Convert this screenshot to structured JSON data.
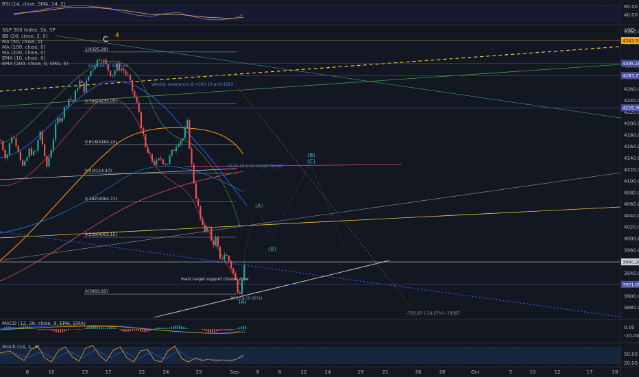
{
  "legend": {
    "symbol": "S&P 500 Index, 1h, SP",
    "rsi": "RSI (14, close, SMA, 14, 2)",
    "studies": [
      "BB (20, close, 2, 0)",
      "MA (50, close, 0)",
      "MA (100, close, 0)",
      "MA (200, close, 0)",
      "EMA (10, close, 0)",
      "EMA (200, close, 0, SMA, 5)"
    ],
    "macd": "MACD (12, 26, close, 9, EMA, EMA)",
    "stoch": "Stoch (14, 1, 3)"
  },
  "waves": {
    "c": "C",
    "four": "4",
    "a": "(A)",
    "b_green": "(B)",
    "b_target": "(B)",
    "c_target": "(C)",
    "a_bottom": "(A)"
  },
  "fib_levels": [
    {
      "label": "1(4325.28)",
      "price": 4325
    },
    {
      "label": "0.786(4235.05)",
      "price": 4235
    },
    {
      "label": "0.618(4164.22)",
      "price": 4164
    },
    {
      "label": "0.5(4114.47)",
      "price": 4114
    },
    {
      "label": "0.382(4064.71)",
      "price": 4065
    },
    {
      "label": "0.236(4003.15)",
      "price": 4003
    },
    {
      "label": "0(3903.65)",
      "price": 3904
    }
  ],
  "annotations": {
    "resistance": "Weekly resistance @ 4300.19 and 4283",
    "weekly_top": "4343.86 @ 4300.19",
    "target_zone": "main target support cluster zone",
    "next_target": "4135.35 next target target",
    "bottom_note": "3905.4 (0.00%)",
    "measure": "-703.87 (-16.27%) -70397"
  },
  "price_tags": [
    {
      "text": "4343.74",
      "price": 4345,
      "color": "#f5a623",
      "fg": "#131722"
    },
    {
      "text": "4305.19",
      "price": 4305,
      "color": "#4a4f9e",
      "fg": "#ffffff"
    },
    {
      "text": "4283.73",
      "price": 4284,
      "color": "#4a4f9e",
      "fg": "#ffffff"
    },
    {
      "text": "4228.36",
      "price": 4228,
      "color": "#4a4f9e",
      "fg": "#ffffff"
    },
    {
      "text": "3960.28",
      "price": 3960,
      "color": "#d1d4dc",
      "fg": "#131722"
    },
    {
      "text": "3921.05",
      "price": 3921,
      "color": "#4a4f9e",
      "fg": "#ffffff"
    }
  ],
  "colors": {
    "bg": "#131722",
    "up": "#26a69a",
    "down": "#ef5350",
    "fib": "#9598a1",
    "resist": "#6a3fbf"
  },
  "chart_data": {
    "type": "candlestick",
    "symbol": "S&P 500 Index",
    "interval": "1h",
    "x_ticks": [
      "8",
      "10",
      "15",
      "17",
      "22",
      "24",
      "29",
      "Sep",
      "6",
      "8",
      "12",
      "14",
      "19",
      "21",
      "26",
      "28",
      "Oct",
      "5",
      "10",
      "12",
      "17",
      "19"
    ],
    "y_ticks": [
      "4360.00",
      "4340.00",
      "4300.00",
      "4280.00",
      "4260.00",
      "4240.00",
      "4220.00",
      "4200.00",
      "4180.00",
      "4160.00",
      "4140.00",
      "4120.00",
      "4100.00",
      "4080.00",
      "4060.00",
      "4040.00",
      "4020.00",
      "4000.00",
      "3980.00",
      "3960.00",
      "3940.00",
      "3920.00",
      "3900.00",
      "3880.00"
    ],
    "unit": "USD",
    "ylim": [
      3860,
      4370
    ],
    "rsi_ticks": [
      "60.00",
      "40.00"
    ],
    "macd_ticks": [
      "0.00",
      "-20.00"
    ],
    "stoch_ticks": [
      "50.00",
      "20.00"
    ],
    "price_path": [
      {
        "t": 0,
        "p": 4170
      },
      {
        "t": 8,
        "p": 4140
      },
      {
        "t": 16,
        "p": 4180
      },
      {
        "t": 24,
        "p": 4165
      },
      {
        "t": 33,
        "p": 4120
      },
      {
        "t": 42,
        "p": 4155
      },
      {
        "t": 50,
        "p": 4145
      },
      {
        "t": 58,
        "p": 4190
      },
      {
        "t": 66,
        "p": 4120
      },
      {
        "t": 74,
        "p": 4160
      },
      {
        "t": 82,
        "p": 4205
      },
      {
        "t": 90,
        "p": 4215
      },
      {
        "t": 98,
        "p": 4245
      },
      {
        "t": 106,
        "p": 4240
      },
      {
        "t": 114,
        "p": 4275
      },
      {
        "t": 122,
        "p": 4260
      },
      {
        "t": 130,
        "p": 4290
      },
      {
        "t": 138,
        "p": 4305
      },
      {
        "t": 146,
        "p": 4318
      },
      {
        "t": 154,
        "p": 4300
      },
      {
        "t": 162,
        "p": 4285
      },
      {
        "t": 170,
        "p": 4300
      },
      {
        "t": 178,
        "p": 4295
      },
      {
        "t": 186,
        "p": 4280
      },
      {
        "t": 194,
        "p": 4250
      },
      {
        "t": 202,
        "p": 4220
      },
      {
        "t": 210,
        "p": 4160
      },
      {
        "t": 218,
        "p": 4140
      },
      {
        "t": 226,
        "p": 4130
      },
      {
        "t": 234,
        "p": 4140
      },
      {
        "t": 242,
        "p": 4130
      },
      {
        "t": 250,
        "p": 4150
      },
      {
        "t": 258,
        "p": 4170
      },
      {
        "t": 266,
        "p": 4175
      },
      {
        "t": 272,
        "p": 4200
      },
      {
        "t": 278,
        "p": 4130
      },
      {
        "t": 284,
        "p": 4080
      },
      {
        "t": 290,
        "p": 4040
      },
      {
        "t": 296,
        "p": 4010
      },
      {
        "t": 302,
        "p": 4030
      },
      {
        "t": 308,
        "p": 3990
      },
      {
        "t": 314,
        "p": 4000
      },
      {
        "t": 320,
        "p": 3960
      },
      {
        "t": 326,
        "p": 3975
      },
      {
        "t": 332,
        "p": 3965
      },
      {
        "t": 338,
        "p": 3945
      },
      {
        "t": 344,
        "p": 3920
      },
      {
        "t": 348,
        "p": 3905
      },
      {
        "t": 352,
        "p": 3935
      },
      {
        "t": 357,
        "p": 3962
      }
    ]
  }
}
